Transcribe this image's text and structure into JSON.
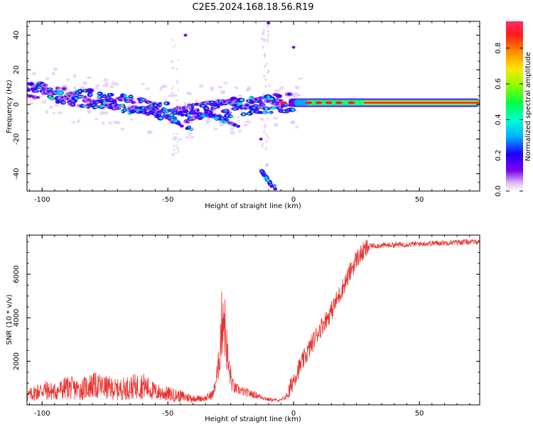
{
  "title": "C2E5.2024.168.18.56.R19",
  "chart_data": [
    {
      "type": "heatmap",
      "xlabel": "Height of straight line (km)",
      "ylabel": "Frequency (Hz)",
      "xlim": [
        -106,
        74
      ],
      "ylim": [
        -50,
        48
      ],
      "x_ticks": [
        -100,
        -50,
        0,
        50
      ],
      "y_ticks": [
        -40,
        -20,
        0,
        20,
        40
      ],
      "colorbar": {
        "label": "Normalized spectral amplitude",
        "ticks": [
          "0.0",
          "0.2",
          "0.4",
          "0.6",
          "0.8"
        ],
        "range": [
          0,
          0.95
        ]
      },
      "ridge": {
        "x": [
          -106,
          -95,
          -85,
          -75,
          -65,
          -55,
          -45,
          -38,
          -30,
          -20,
          -12,
          -5,
          0,
          10,
          20,
          30,
          40,
          50,
          60,
          74
        ],
        "y": [
          8,
          6,
          4,
          2,
          0,
          -3,
          -6,
          -4,
          -3,
          -1,
          0,
          1,
          1,
          1,
          1,
          1,
          1,
          1,
          1,
          1
        ]
      },
      "branches": [
        {
          "x": [
            -70,
            -55,
            -48,
            -44,
            -40
          ],
          "y": [
            -2,
            -5,
            -8,
            -12,
            -15
          ]
        },
        {
          "x": [
            -35,
            -30,
            -26,
            -22
          ],
          "y": [
            -5,
            -8,
            -10,
            -12
          ]
        },
        {
          "x": [
            -13,
            -11,
            -9,
            -7
          ],
          "y": [
            -38,
            -42,
            -46,
            -49
          ]
        }
      ]
    },
    {
      "type": "line",
      "xlabel": "Height of straight line (km)",
      "ylabel": "SNR (10 * v/v)",
      "xlim": [
        -106,
        74
      ],
      "ylim": [
        0,
        7800
      ],
      "x_ticks": [
        -100,
        -50,
        0,
        50
      ],
      "y_ticks": [
        2000,
        4000,
        6000
      ],
      "color": "#e8302c",
      "series": [
        {
          "x": [
            -106,
            -100,
            -95,
            -90,
            -85,
            -80,
            -75,
            -70,
            -65,
            -60,
            -55,
            -50,
            -45,
            -40,
            -35,
            -32,
            -30,
            -28,
            -26,
            -24,
            -20,
            -15,
            -10,
            -5,
            -2,
            0,
            5,
            10,
            15,
            20,
            25,
            30,
            40,
            50,
            60,
            74
          ],
          "values": [
            400,
            700,
            600,
            800,
            700,
            900,
            800,
            700,
            800,
            900,
            600,
            500,
            400,
            300,
            300,
            500,
            1600,
            4500,
            1800,
            800,
            600,
            450,
            250,
            200,
            500,
            1200,
            2300,
            3400,
            4300,
            5500,
            6700,
            7300,
            7350,
            7400,
            7450,
            7500
          ]
        }
      ]
    }
  ]
}
